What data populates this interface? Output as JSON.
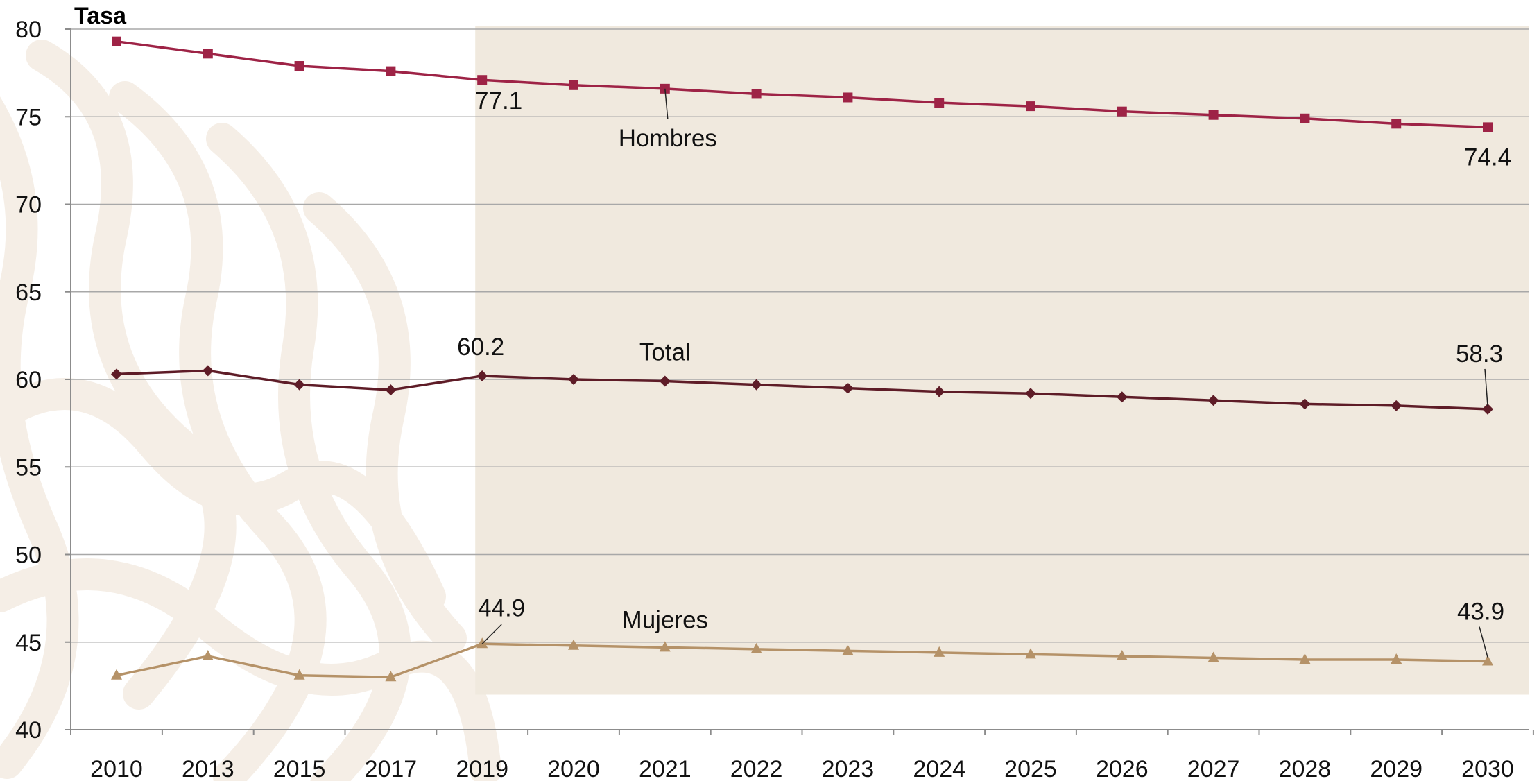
{
  "chart_data": {
    "type": "line",
    "ylabel": "Tasa",
    "xlabel": "",
    "title": "",
    "ylim": [
      40,
      80
    ],
    "yticks": [
      40,
      45,
      50,
      55,
      60,
      65,
      70,
      75,
      80
    ],
    "grid": true,
    "shaded_region": {
      "from": "2019",
      "to": "2030",
      "color": "#f0e9de",
      "y_bottom": 42
    },
    "categories": [
      "2010",
      "2013",
      "2015",
      "2017",
      "2019",
      "2020",
      "2021",
      "2022",
      "2023",
      "2024",
      "2025",
      "2026",
      "2027",
      "2028",
      "2029",
      "2030"
    ],
    "series": [
      {
        "name": "Hombres",
        "color": "#9e2346",
        "marker": "square",
        "values": [
          79.3,
          78.6,
          77.9,
          77.6,
          77.1,
          76.8,
          76.6,
          76.3,
          76.1,
          75.8,
          75.6,
          75.3,
          75.1,
          74.9,
          74.6,
          74.4
        ],
        "labels": [
          {
            "index": 4,
            "text": "77.1"
          },
          {
            "index": 15,
            "text": "74.4"
          }
        ]
      },
      {
        "name": "Total",
        "color": "#5e1c27",
        "marker": "diamond",
        "values": [
          60.3,
          60.5,
          59.7,
          59.4,
          60.2,
          60.0,
          59.9,
          59.7,
          59.5,
          59.3,
          59.2,
          59.0,
          58.8,
          58.6,
          58.5,
          58.3
        ],
        "labels": [
          {
            "index": 4,
            "text": "60.2"
          },
          {
            "index": 15,
            "text": "58.3"
          }
        ]
      },
      {
        "name": "Mujeres",
        "color": "#b59268",
        "marker": "triangle",
        "values": [
          43.1,
          44.2,
          43.1,
          43.0,
          44.9,
          44.8,
          44.7,
          44.6,
          44.5,
          44.4,
          44.3,
          44.2,
          44.1,
          44.0,
          44.0,
          43.9
        ],
        "labels": [
          {
            "index": 4,
            "text": "44.9"
          },
          {
            "index": 15,
            "text": "43.9"
          }
        ]
      }
    ]
  }
}
